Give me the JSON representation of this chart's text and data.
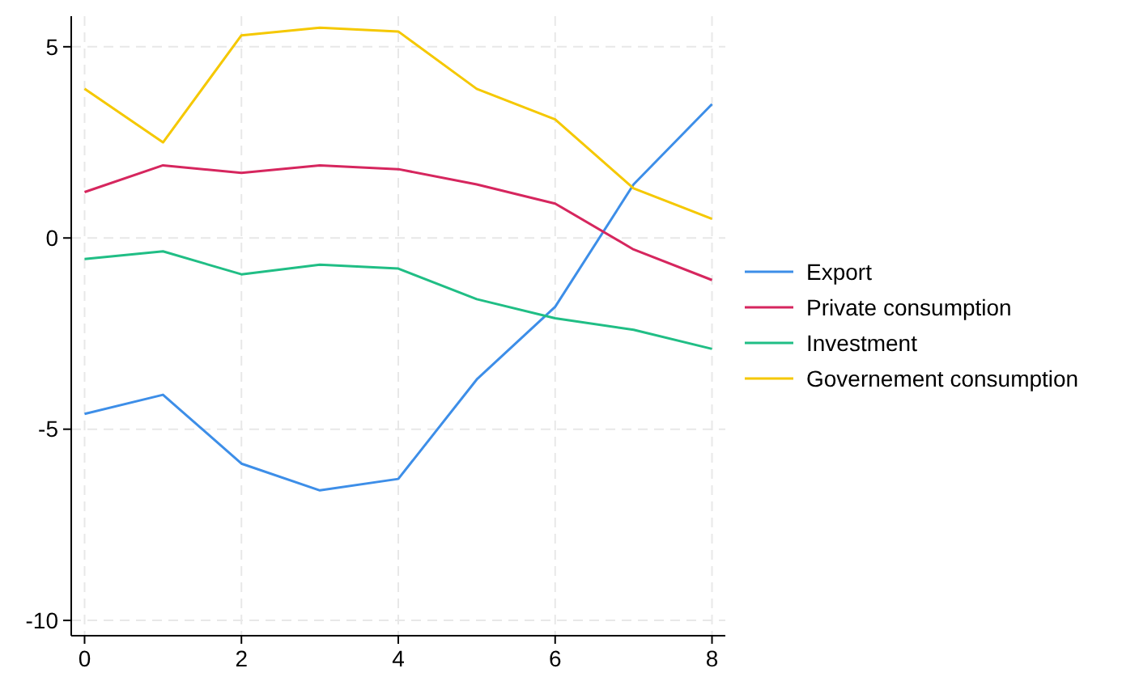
{
  "chart_data": {
    "type": "line",
    "x": [
      0,
      1,
      2,
      3,
      4,
      5,
      6,
      7,
      8
    ],
    "series": [
      {
        "name": "Export",
        "color": "#3d8ee8",
        "values": [
          -4.6,
          -4.1,
          -5.9,
          -6.6,
          -6.3,
          -3.7,
          -1.8,
          1.4,
          3.5
        ]
      },
      {
        "name": "Private consumption",
        "color": "#d6265e",
        "values": [
          1.2,
          1.9,
          1.7,
          1.9,
          1.8,
          1.4,
          0.9,
          -0.3,
          -1.1
        ]
      },
      {
        "name": "Investment",
        "color": "#20be85",
        "values": [
          -0.55,
          -0.35,
          -0.95,
          -0.7,
          -0.8,
          -1.6,
          -2.1,
          -2.4,
          -2.9
        ]
      },
      {
        "name": "Governement consumption",
        "color": "#f5c800",
        "values": [
          3.9,
          2.5,
          5.3,
          5.5,
          5.4,
          3.9,
          3.1,
          1.3,
          0.5
        ]
      }
    ],
    "xlim": [
      -0.17,
      8.17
    ],
    "xticks": [
      0,
      2,
      4,
      6,
      8
    ],
    "ylim": [
      -10.4,
      5.8
    ],
    "yticks": [
      -10,
      -5,
      0,
      5
    ],
    "grid": true,
    "legend": "right",
    "marker": "none",
    "line_style": "solid"
  }
}
